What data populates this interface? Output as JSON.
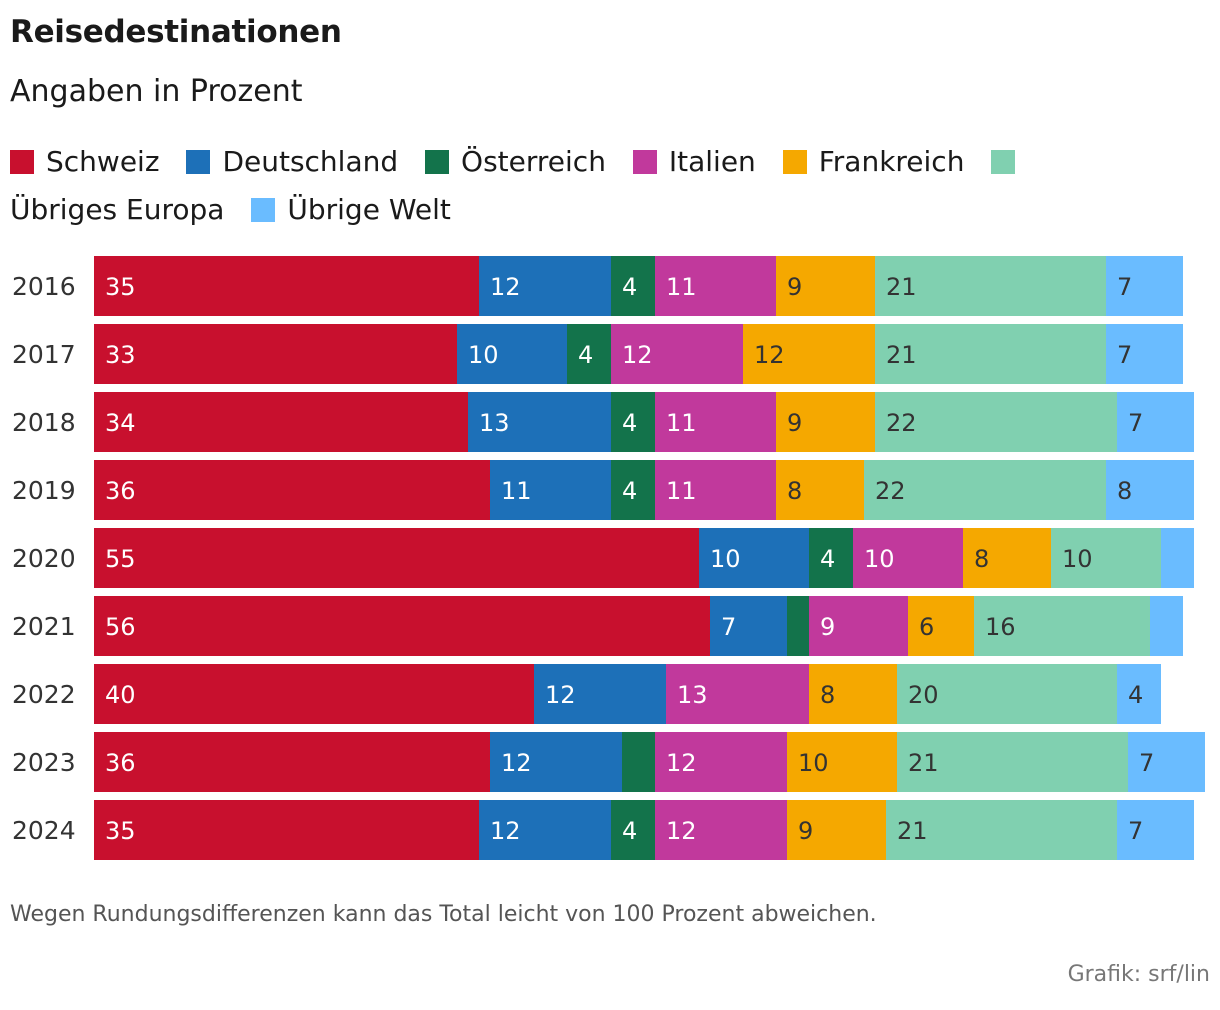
{
  "title": "Reisedestinationen",
  "subtitle": "Angaben in Prozent",
  "footnote": "Wegen Rundungsdifferenzen kann das Total leicht von 100 Prozent abweichen.",
  "source": "Grafik: srf/lin",
  "legend": [
    {
      "label": "Schweiz",
      "color": "#c8102e"
    },
    {
      "label": "Deutschland",
      "color": "#1d70b8"
    },
    {
      "label": "Österreich",
      "color": "#13734b"
    },
    {
      "label": "Italien",
      "color": "#c1399c"
    },
    {
      "label": "Frankreich",
      "color": "#f5a800"
    },
    {
      "label": "Übriges Europa",
      "color": "#80d0b0"
    },
    {
      "label": "Übrige Welt",
      "color": "#6abcff"
    }
  ],
  "chart_data": {
    "type": "bar",
    "orientation": "horizontal",
    "stacked": true,
    "title": "Reisedestinationen",
    "subtitle": "Angaben in Prozent",
    "xlabel": "",
    "ylabel": "",
    "xlim": [
      0,
      100
    ],
    "categories": [
      "2016",
      "2017",
      "2018",
      "2019",
      "2020",
      "2021",
      "2022",
      "2023",
      "2024"
    ],
    "series": [
      {
        "name": "Schweiz",
        "color": "#c8102e",
        "label_color": "#ffffff",
        "values": [
          35,
          33,
          34,
          36,
          55,
          56,
          40,
          36,
          35
        ],
        "labels": [
          "35",
          "33",
          "34",
          "36",
          "55",
          "56",
          "40",
          "36",
          "35"
        ]
      },
      {
        "name": "Deutschland",
        "color": "#1d70b8",
        "label_color": "#ffffff",
        "values": [
          12,
          10,
          13,
          11,
          10,
          7,
          12,
          12,
          12
        ],
        "labels": [
          "12",
          "10",
          "13",
          "11",
          "10",
          "7",
          "12",
          "12",
          "12"
        ]
      },
      {
        "name": "Österreich",
        "color": "#13734b",
        "label_color": "#ffffff",
        "values": [
          4,
          4,
          4,
          4,
          4,
          2,
          0,
          3,
          4
        ],
        "labels": [
          "4",
          "4",
          "4",
          "4",
          "4",
          "",
          "",
          "",
          "4"
        ]
      },
      {
        "name": "Italien",
        "color": "#c1399c",
        "label_color": "#ffffff",
        "values": [
          11,
          12,
          11,
          11,
          10,
          9,
          13,
          12,
          12
        ],
        "labels": [
          "11",
          "12",
          "11",
          "11",
          "10",
          "9",
          "13",
          "12",
          "12"
        ]
      },
      {
        "name": "Frankreich",
        "color": "#f5a800",
        "label_color": "#333333",
        "values": [
          9,
          12,
          9,
          8,
          8,
          6,
          8,
          10,
          9
        ],
        "labels": [
          "9",
          "12",
          "9",
          "8",
          "8",
          "6",
          "8",
          "10",
          "9"
        ]
      },
      {
        "name": "Übriges Europa",
        "color": "#80d0b0",
        "label_color": "#333333",
        "values": [
          21,
          21,
          22,
          22,
          10,
          16,
          20,
          21,
          21
        ],
        "labels": [
          "21",
          "21",
          "22",
          "22",
          "10",
          "16",
          "20",
          "21",
          "21"
        ]
      },
      {
        "name": "Übrige Welt",
        "color": "#6abcff",
        "label_color": "#333333",
        "values": [
          7,
          7,
          7,
          8,
          3,
          3,
          4,
          7,
          7
        ],
        "labels": [
          "7",
          "7",
          "7",
          "8",
          "",
          "",
          "4",
          "7",
          "7"
        ]
      }
    ]
  }
}
